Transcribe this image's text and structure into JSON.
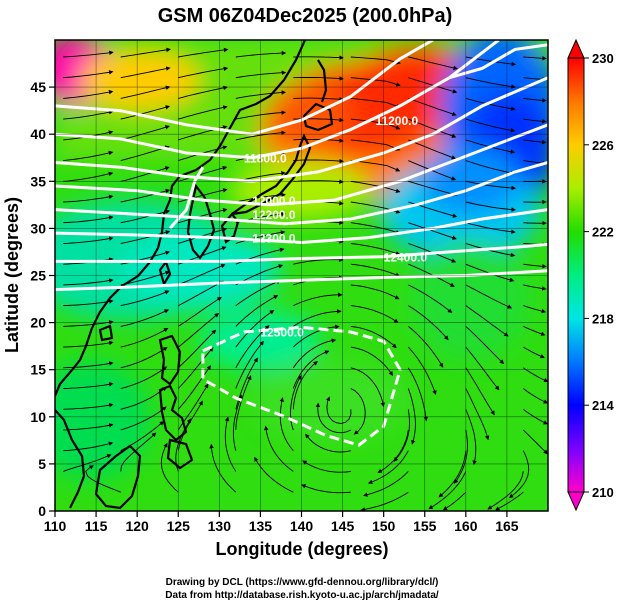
{
  "title": "GSM 06Z04Dec2025 (200.0hPa)",
  "x_axis": {
    "label": "Longitude (degrees)",
    "range": [
      110,
      170
    ],
    "ticks": [
      "110",
      "115",
      "120",
      "125",
      "130",
      "135",
      "140",
      "145",
      "150",
      "155",
      "160",
      "165"
    ]
  },
  "y_axis": {
    "label": "Latitude  (degrees)",
    "range": [
      0,
      50
    ],
    "ticks": [
      "0",
      "5",
      "10",
      "15",
      "20",
      "25",
      "30",
      "35",
      "40",
      "45"
    ]
  },
  "colorbar": {
    "range": [
      210,
      230
    ],
    "ticks": [
      "210",
      "214",
      "218",
      "222",
      "226",
      "230"
    ]
  },
  "contour_labels": [
    {
      "text": "11800.0",
      "lon": 133,
      "lat": 37.0
    },
    {
      "text": "12000.0",
      "lon": 134,
      "lat": 32.5
    },
    {
      "text": "12200.0",
      "lon": 134,
      "lat": 31.0
    },
    {
      "text": "12300.0",
      "lon": 134,
      "lat": 28.5
    },
    {
      "text": "12400.0",
      "lon": 150,
      "lat": 26.5
    },
    {
      "text": "11200.0",
      "lon": 149,
      "lat": 41.0
    },
    {
      "text": "12500.0",
      "lon": 135,
      "lat": 18.5
    }
  ],
  "chart_data": {
    "type": "heatmap",
    "title": "GSM 06Z04Dec2025 (200.0hPa)",
    "xlabel": "Longitude (degrees)",
    "ylabel": "Latitude  (degrees)",
    "xlim": [
      110,
      170
    ],
    "ylim": [
      0,
      50
    ],
    "color_range": [
      210,
      230
    ],
    "overlays": [
      "geopotential height contours (white)",
      "wind streamlines (black)",
      "coastlines"
    ],
    "colormap_stops": [
      {
        "value": 210,
        "color": "#ff00cc"
      },
      {
        "value": 212,
        "color": "#7a00ff"
      },
      {
        "value": 214,
        "color": "#0000ff"
      },
      {
        "value": 216,
        "color": "#0078ff"
      },
      {
        "value": 218,
        "color": "#00e5e5"
      },
      {
        "value": 220,
        "color": "#00ee80"
      },
      {
        "value": 222,
        "color": "#22dd00"
      },
      {
        "value": 224,
        "color": "#aaee00"
      },
      {
        "value": 226,
        "color": "#ffcc00"
      },
      {
        "value": 228,
        "color": "#ff7700"
      },
      {
        "value": 230,
        "color": "#ff0000"
      }
    ]
  },
  "footer": {
    "line1": "Drawing by DCL (https://www.gfd-dennou.org/library/dcl/)",
    "line2": "Data from http://database.rish.kyoto-u.ac.jp/arch/jmadata/"
  }
}
